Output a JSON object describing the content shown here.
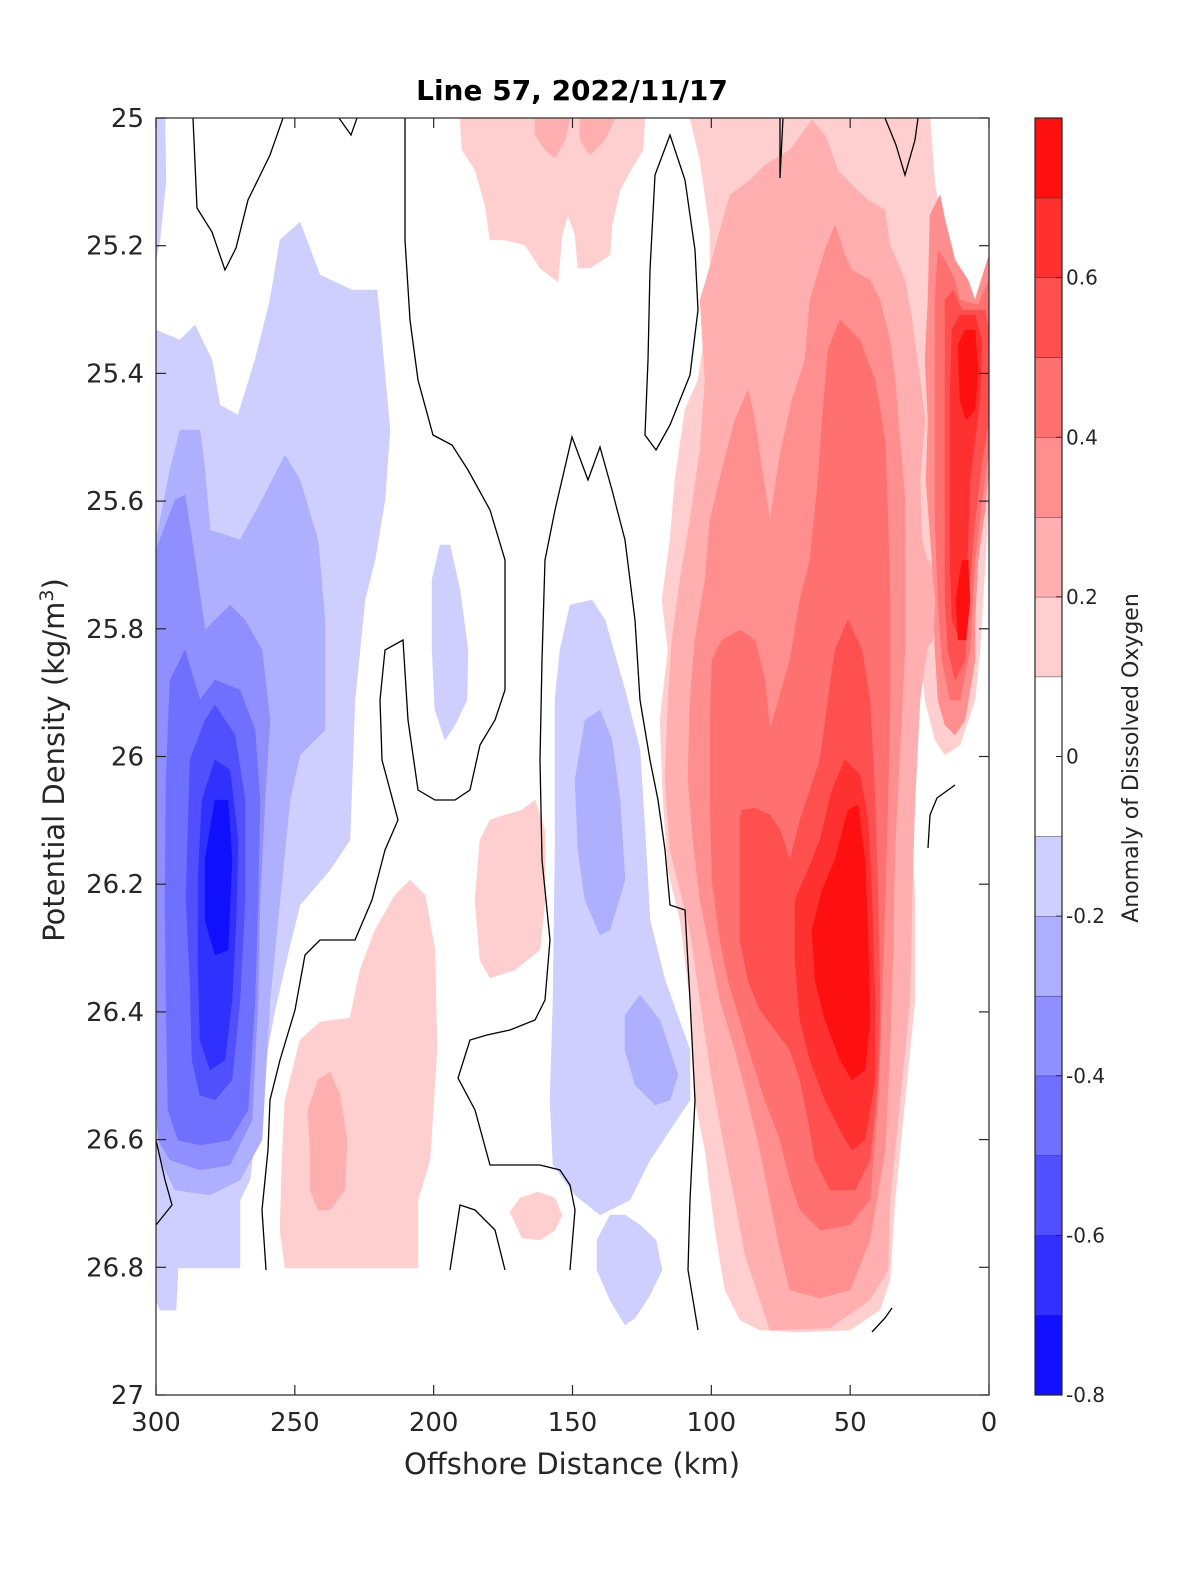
{
  "chart_data": {
    "type": "heatmap",
    "title": "Line 57, 2022/11/17",
    "xlabel": "Offshore Distance (km)",
    "ylabel_main": "Potential Density (kg/m",
    "ylabel_sup": "3",
    "ylabel_close": ")",
    "colorbar_label": "Anomaly of Dissolved Oxygen",
    "x_reversed": true,
    "xlim": [
      0,
      300
    ],
    "ylim": [
      25,
      27
    ],
    "y_reversed": true,
    "x_ticks": [
      "300",
      "250",
      "200",
      "150",
      "100",
      "50",
      "0"
    ],
    "x_tick_values": [
      300,
      250,
      200,
      150,
      100,
      50,
      0
    ],
    "y_ticks": [
      "25",
      "25.2",
      "25.4",
      "25.6",
      "25.8",
      "26",
      "26.2",
      "26.4",
      "26.6",
      "26.8",
      "27"
    ],
    "y_tick_values": [
      25,
      25.2,
      25.4,
      25.6,
      25.8,
      26,
      26.2,
      26.4,
      26.6,
      26.8,
      27
    ],
    "colorbar_ticks": [
      "0.6",
      "0.4",
      "0.2",
      "0",
      "-0.2",
      "-0.4",
      "-0.6",
      "-0.8"
    ],
    "colorbar_tick_values": [
      0.6,
      0.4,
      0.2,
      0,
      -0.2,
      -0.4,
      -0.6,
      -0.8
    ],
    "clim": [
      -0.8,
      0.8
    ],
    "levels": [
      -0.8,
      -0.7,
      -0.6,
      -0.5,
      -0.4,
      -0.3,
      -0.2,
      -0.1,
      0.1,
      0.2,
      0.3,
      0.4,
      0.5,
      0.6,
      0.7,
      0.8
    ],
    "colormap_low": "#0000ff",
    "colormap_mid": "#ffffff",
    "colormap_high": "#ff0000",
    "zero_contour_color": "#000000",
    "features": [
      {
        "x": 275,
        "y": 26.2,
        "value": -0.7
      },
      {
        "x": 280,
        "y": 25.9,
        "value": -0.4
      },
      {
        "x": 270,
        "y": 25.5,
        "value": -0.2
      },
      {
        "x": 295,
        "y": 26.8,
        "value": -0.15
      },
      {
        "x": 195,
        "y": 25.85,
        "value": -0.15
      },
      {
        "x": 140,
        "y": 26.05,
        "value": -0.3
      },
      {
        "x": 125,
        "y": 26.45,
        "value": -0.3
      },
      {
        "x": 135,
        "y": 26.8,
        "value": -0.15
      },
      {
        "x": 165,
        "y": 25.1,
        "value": 0.2
      },
      {
        "x": 175,
        "y": 26.2,
        "value": 0.2
      },
      {
        "x": 225,
        "y": 26.6,
        "value": 0.25
      },
      {
        "x": 165,
        "y": 26.72,
        "value": 0.2
      },
      {
        "x": 50,
        "y": 26.3,
        "value": 0.75
      },
      {
        "x": 55,
        "y": 25.5,
        "value": 0.45
      },
      {
        "x": 80,
        "y": 26.0,
        "value": 0.35
      },
      {
        "x": 65,
        "y": 26.8,
        "value": 0.2
      },
      {
        "x": 10,
        "y": 25.4,
        "value": 0.7
      },
      {
        "x": 10,
        "y": 25.8,
        "value": 0.55
      }
    ]
  }
}
